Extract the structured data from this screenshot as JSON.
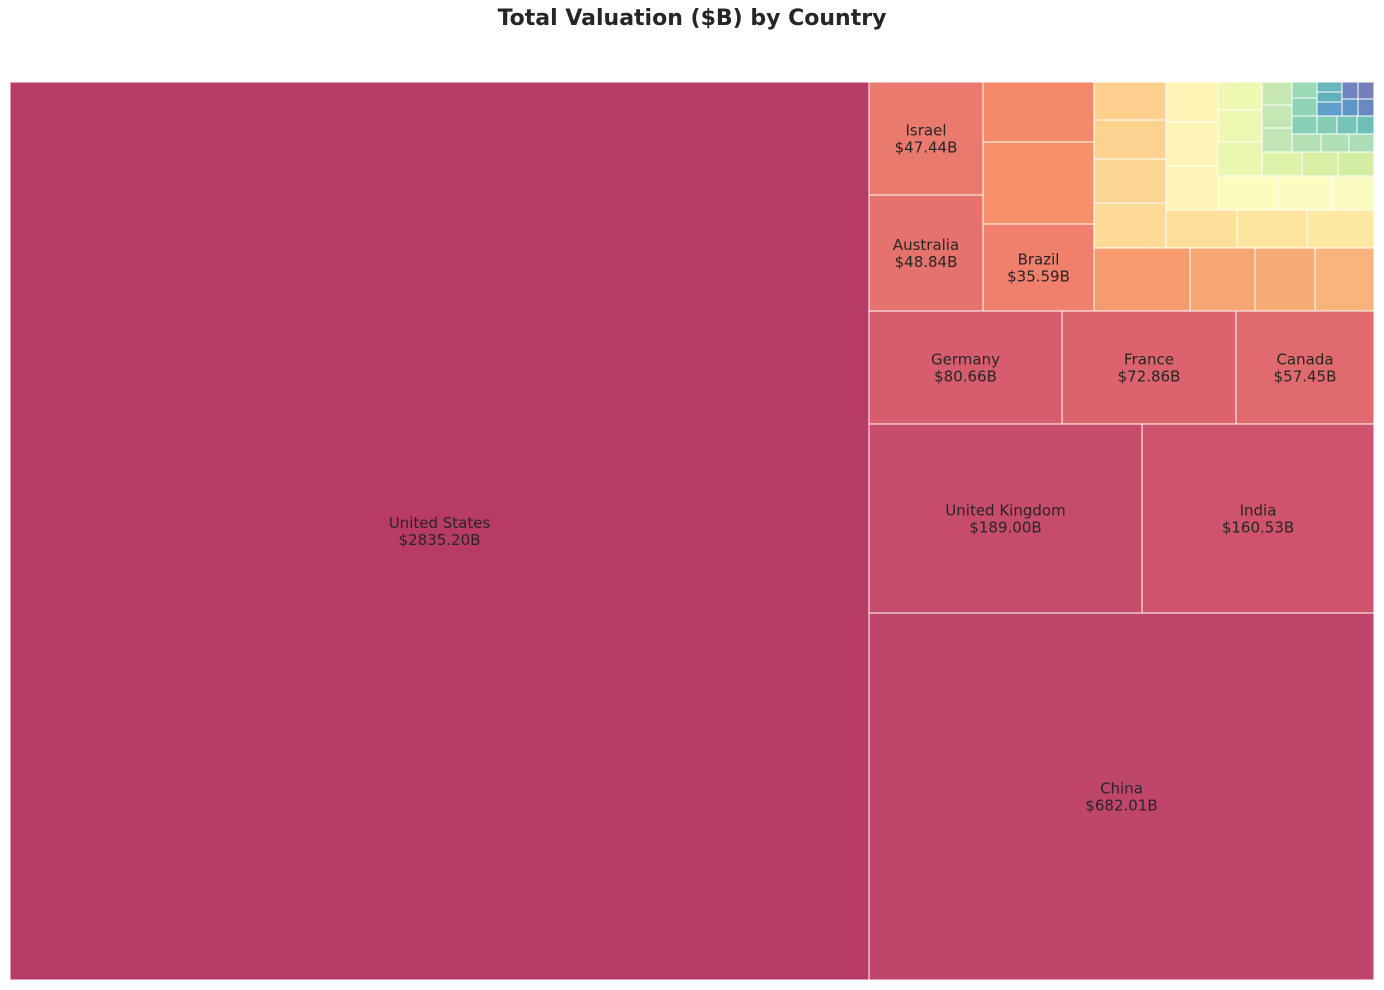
{
  "chart_data": {
    "type": "treemap",
    "title": "Total Valuation ($B) by Country",
    "value_unit": "$B",
    "colormap": "Spectral",
    "labeled": [
      {
        "name": "United States",
        "value": 2835.2,
        "label": "$2835.20B",
        "color": "#b73a67"
      },
      {
        "name": "China",
        "value": 682.01,
        "label": "$682.01B",
        "color": "#bf456a"
      },
      {
        "name": "United Kingdom",
        "value": 189.0,
        "label": "$189.00B",
        "color": "#c74b6b"
      },
      {
        "name": "India",
        "value": 160.53,
        "label": "$160.53B",
        "color": "#cf536c"
      },
      {
        "name": "Germany",
        "value": 80.66,
        "label": "$80.66B",
        "color": "#d75c6d"
      },
      {
        "name": "France",
        "value": 72.86,
        "label": "$72.86B",
        "color": "#dc636e"
      },
      {
        "name": "Canada",
        "value": 57.45,
        "label": "$57.45B",
        "color": "#e06a6e"
      },
      {
        "name": "Australia",
        "value": 48.84,
        "label": "$48.84B",
        "color": "#e6726e"
      },
      {
        "name": "Israel",
        "value": 47.44,
        "label": "$47.44B",
        "color": "#ea7a6e"
      },
      {
        "name": "Brazil",
        "value": 35.59,
        "label": "$35.59B",
        "color": "#f07f6c"
      }
    ],
    "unlabeled_colors": [
      "#f58a6a",
      "#f6916c",
      "#f59b6e",
      "#f7a572",
      "#f8ac75",
      "#f8b47a",
      "#fccf8c",
      "#fdd28f",
      "#fdd693",
      "#fdda96",
      "#fee09b",
      "#fee59e",
      "#fee9a2",
      "#fef2b4",
      "#fef3b7",
      "#fef4ba",
      "#fdfbbd",
      "#fbfcc0",
      "#f9fbc0",
      "#eff8b1",
      "#ecf7b1",
      "#e9f6b0",
      "#def2a9",
      "#d9efa6",
      "#d3eda5",
      "#c7e8b2",
      "#c5e7b4",
      "#c3e6b6",
      "#b3e1b4",
      "#afdfb5",
      "#abddb6",
      "#9bd8b6",
      "#90d2b5",
      "#89cfb6",
      "#84ccb6",
      "#76c3b8",
      "#6fbfb9",
      "#69b6bc",
      "#62afbd",
      "#5f9fcb",
      "#5f95c7",
      "#6889c1",
      "#6f83bf",
      "#757fba",
      "#7b7bb6"
    ]
  }
}
